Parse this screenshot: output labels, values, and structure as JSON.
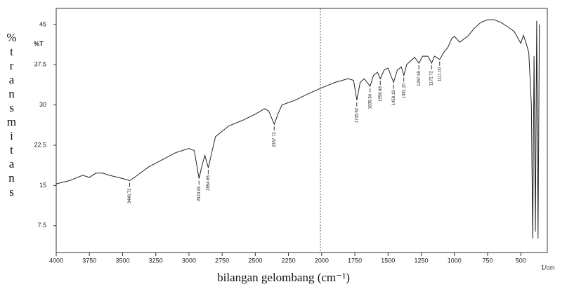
{
  "chart_data": {
    "type": "line",
    "y_label": "%transmitans",
    "y_unit": "%T",
    "x_label": "bilangan gelombang (cm⁻¹)",
    "x_unit": "1/cm",
    "xlim": [
      4000,
      300
    ],
    "xticks": [
      4000,
      3750,
      3500,
      3250,
      3000,
      2750,
      2500,
      2250,
      2000,
      1750,
      1500,
      1250,
      1000,
      750,
      500
    ],
    "ylim": [
      2.5,
      48
    ],
    "yticks": [
      7.5,
      15,
      22.5,
      30,
      37.5,
      45
    ],
    "series": [
      {
        "color": "#222222",
        "x": [
          4000,
          3900,
          3800,
          3750,
          3700,
          3650,
          3600,
          3500,
          3446,
          3400,
          3300,
          3200,
          3100,
          3000,
          2960,
          2924,
          2900,
          2880,
          2854,
          2830,
          2800,
          2700,
          2600,
          2500,
          2430,
          2400,
          2357,
          2330,
          2300,
          2200,
          2100,
          2000,
          1900,
          1800,
          1760,
          1735,
          1710,
          1680,
          1635,
          1610,
          1580,
          1558,
          1530,
          1500,
          1458,
          1430,
          1400,
          1381,
          1360,
          1300,
          1267,
          1240,
          1200,
          1172,
          1150,
          1111,
          1080,
          1050,
          1020,
          1000,
          960,
          900,
          850,
          800,
          750,
          700,
          650,
          600,
          550,
          520,
          500,
          480,
          460,
          440,
          420,
          410,
          400,
          390,
          380,
          370,
          360
        ],
        "values": [
          15.3,
          15.9,
          16.9,
          16.5,
          17.3,
          17.3,
          16.9,
          16.3,
          15.9,
          16.7,
          18.5,
          19.8,
          21.1,
          21.9,
          21.5,
          16.3,
          18.9,
          20.6,
          18.3,
          20.9,
          24.1,
          26.1,
          27.1,
          28.3,
          29.3,
          28.9,
          26.4,
          28.3,
          30.0,
          30.9,
          32.1,
          33.2,
          34.2,
          34.9,
          34.6,
          30.9,
          34.2,
          34.9,
          33.5,
          35.5,
          36.1,
          34.9,
          36.5,
          36.9,
          34.2,
          36.5,
          37.1,
          35.5,
          37.5,
          38.9,
          37.8,
          39.1,
          39.1,
          37.8,
          39.1,
          38.5,
          39.8,
          40.7,
          42.4,
          42.8,
          41.7,
          42.8,
          44.3,
          45.4,
          45.9,
          45.9,
          45.4,
          44.6,
          43.7,
          42.4,
          41.5,
          43.0,
          41.5,
          39.8,
          30.0,
          5.1,
          39.1,
          6.4,
          45.7,
          5.1,
          45.0
        ]
      }
    ],
    "annotations": [
      {
        "text": "3446.72",
        "x": 3446.72,
        "y": 15.9
      },
      {
        "text": "2924.09",
        "x": 2924.09,
        "y": 16.3
      },
      {
        "text": "2854.65",
        "x": 2854.65,
        "y": 18.3
      },
      {
        "text": "2357.72",
        "x": 2357.72,
        "y": 26.4
      },
      {
        "text": "1735.62",
        "x": 1735.62,
        "y": 30.9
      },
      {
        "text": "1635.54",
        "x": 1635.54,
        "y": 33.5
      },
      {
        "text": "1558.48",
        "x": 1558.48,
        "y": 34.9
      },
      {
        "text": "1458.18",
        "x": 1458.18,
        "y": 34.2
      },
      {
        "text": "1381.20",
        "x": 1381.2,
        "y": 35.5
      },
      {
        "text": "1267.59",
        "x": 1267.59,
        "y": 37.8
      },
      {
        "text": "1172.72",
        "x": 1172.72,
        "y": 37.8
      },
      {
        "text": "1111.00",
        "x": 1111.0,
        "y": 38.5
      }
    ]
  }
}
